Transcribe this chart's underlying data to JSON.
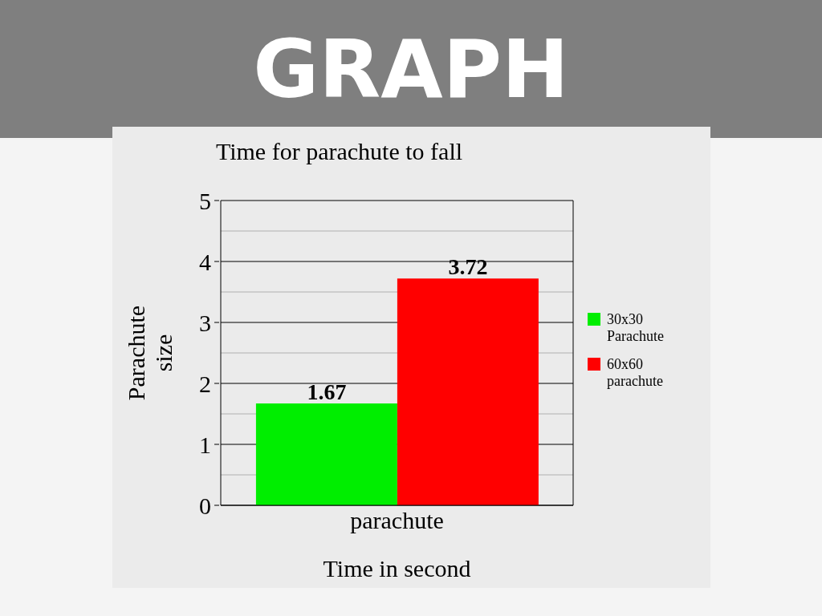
{
  "chart_data": {
    "type": "bar",
    "title": "GRAPH",
    "subtitle": "Time for parachute to fall",
    "xlabel": "Time in second",
    "ylabel": "Parachute size",
    "categories": [
      "parachute"
    ],
    "series": [
      {
        "name": "30x30 Parachute",
        "color": "#00ee00",
        "values": [
          1.67
        ]
      },
      {
        "name": "60x60 parachute",
        "color": "#ff0000",
        "values": [
          3.72
        ]
      }
    ],
    "ylim": [
      0,
      5
    ],
    "yticks": [
      0,
      {
        "value": 0.5,
        "label": null
      },
      1,
      {
        "value": 1.5,
        "label": null
      },
      2,
      {
        "value": 2.5,
        "label": null
      },
      3,
      {
        "value": 3.5,
        "label": null
      },
      4,
      {
        "value": 4.5,
        "label": null
      },
      5
    ],
    "grid": "y",
    "legend": "right",
    "data_labels": true
  }
}
